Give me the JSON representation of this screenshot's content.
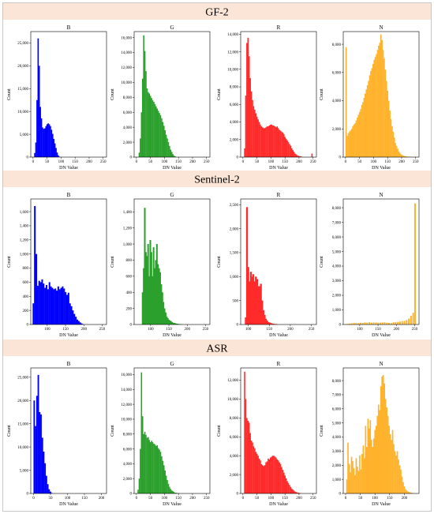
{
  "colors": {
    "B": "#0000ff",
    "G": "#2ca02c",
    "R": "#ff2a2a",
    "N": "#ffb22b",
    "banner": "#fbe5d6"
  },
  "rows": [
    {
      "title": "GF-2"
    },
    {
      "title": "Sentinel-2"
    },
    {
      "title": "ASR"
    }
  ],
  "chart_data": [
    {
      "type": "bar",
      "row": "GF-2",
      "title": "B",
      "xlabel": "DN Value",
      "ylabel": "Count",
      "color": "#0000ff",
      "xlim": [
        -8,
        262
      ],
      "ylim": [
        0,
        27500
      ],
      "xticks": [
        0,
        50,
        100,
        150,
        200,
        250
      ],
      "yticks": [
        0,
        5000,
        10000,
        15000,
        20000,
        25000
      ],
      "x": [
        6,
        10,
        14,
        18,
        22,
        26,
        30,
        34,
        38,
        42,
        46,
        50,
        54,
        58,
        62,
        66,
        70,
        74,
        78,
        82,
        86,
        90,
        94
      ],
      "values": [
        900,
        3200,
        12500,
        26000,
        20000,
        11000,
        8500,
        6500,
        6200,
        6300,
        6800,
        7200,
        7400,
        7200,
        6800,
        6000,
        5100,
        4000,
        3000,
        2000,
        1000,
        400,
        100
      ]
    },
    {
      "type": "bar",
      "row": "GF-2",
      "title": "G",
      "xlabel": "DN Value",
      "ylabel": "Count",
      "color": "#2ca02c",
      "xlim": [
        -8,
        262
      ],
      "ylim": [
        0,
        16800
      ],
      "xticks": [
        0,
        50,
        100,
        150,
        200,
        250
      ],
      "yticks": [
        0,
        2000,
        4000,
        6000,
        8000,
        10000,
        12000,
        14000,
        16000
      ],
      "x": [
        10,
        14,
        18,
        22,
        26,
        30,
        34,
        38,
        42,
        46,
        50,
        54,
        58,
        62,
        66,
        70,
        74,
        78,
        82,
        86,
        90,
        94,
        98,
        102,
        106,
        110,
        114,
        118,
        122,
        126,
        130,
        134,
        138
      ],
      "values": [
        600,
        2500,
        6000,
        10500,
        16300,
        14200,
        11500,
        9200,
        8700,
        8500,
        8200,
        7900,
        7600,
        7400,
        7100,
        6800,
        6500,
        6200,
        5900,
        5600,
        5200,
        4700,
        4200,
        3600,
        3000,
        2500,
        2000,
        1500,
        1000,
        700,
        400,
        200,
        100
      ]
    },
    {
      "type": "bar",
      "row": "GF-2",
      "title": "R",
      "xlabel": "DN Value",
      "ylabel": "Count",
      "color": "#ff2a2a",
      "xlim": [
        -8,
        262
      ],
      "ylim": [
        0,
        14300
      ],
      "xticks": [
        0,
        50,
        100,
        150,
        200,
        250
      ],
      "yticks": [
        0,
        2000,
        4000,
        6000,
        8000,
        10000,
        12000,
        14000
      ],
      "x": [
        6,
        10,
        14,
        18,
        22,
        26,
        30,
        34,
        38,
        42,
        46,
        50,
        54,
        58,
        62,
        66,
        70,
        74,
        78,
        82,
        86,
        90,
        94,
        98,
        102,
        106,
        110,
        114,
        118,
        122,
        126,
        130,
        134,
        138,
        142,
        146,
        150,
        154,
        158,
        162,
        166,
        170,
        174,
        178,
        182,
        186,
        190,
        194,
        198,
        202,
        206,
        210,
        246
      ],
      "values": [
        1000,
        7000,
        13000,
        13600,
        11500,
        9000,
        7500,
        6500,
        5800,
        5400,
        5000,
        4600,
        4300,
        4000,
        3700,
        3500,
        3400,
        3300,
        3300,
        3400,
        3500,
        3500,
        3600,
        3700,
        3700,
        3600,
        3600,
        3500,
        3400,
        3500,
        3300,
        3100,
        3000,
        2900,
        2800,
        2600,
        2300,
        2100,
        1900,
        1700,
        1500,
        1300,
        1000,
        800,
        600,
        400,
        300,
        200,
        150,
        100,
        80,
        50,
        400
      ]
    },
    {
      "type": "bar",
      "row": "GF-2",
      "title": "N",
      "xlabel": "DN Value",
      "ylabel": "Count",
      "color": "#ffb22b",
      "xlim": [
        -8,
        262
      ],
      "ylim": [
        0,
        8900
      ],
      "xticks": [
        0,
        50,
        100,
        150,
        200,
        250
      ],
      "yticks": [
        0,
        2000,
        4000,
        6000,
        8000
      ],
      "x": [
        2,
        6,
        10,
        14,
        18,
        22,
        26,
        30,
        34,
        38,
        42,
        46,
        50,
        54,
        58,
        62,
        66,
        70,
        74,
        78,
        82,
        86,
        90,
        94,
        98,
        102,
        106,
        110,
        114,
        118,
        122,
        126,
        130,
        134,
        138,
        142,
        146,
        150,
        154,
        158,
        162,
        166,
        170,
        174,
        178,
        182,
        186,
        190,
        194,
        198,
        202,
        206,
        210,
        214,
        218,
        222,
        226,
        230,
        234,
        238,
        242,
        246,
        250
      ],
      "values": [
        7800,
        1500,
        1700,
        1800,
        1900,
        2000,
        2200,
        2300,
        2400,
        2600,
        2800,
        3000,
        3200,
        3400,
        3700,
        3900,
        4200,
        4500,
        4800,
        5100,
        5400,
        5800,
        6100,
        6300,
        6600,
        6900,
        7100,
        7300,
        7600,
        7900,
        8100,
        8700,
        8300,
        7600,
        7000,
        6200,
        5400,
        4700,
        4000,
        3300,
        2700,
        2200,
        1800,
        1400,
        1000,
        800,
        600,
        400,
        300,
        200,
        150,
        100,
        80,
        60,
        40,
        30,
        20,
        20,
        10,
        10,
        10,
        10,
        10
      ]
    },
    {
      "type": "bar",
      "row": "Sentinel-2",
      "title": "B",
      "xlabel": "DN Value",
      "ylabel": "Count",
      "color": "#0000ff",
      "xlim": [
        55,
        262
      ],
      "ylim": [
        0,
        1780
      ],
      "xticks": [
        100,
        150,
        200,
        250
      ],
      "yticks": [
        0,
        200,
        400,
        600,
        800,
        1000,
        1200,
        1400,
        1600
      ],
      "x": [
        62,
        66,
        70,
        74,
        78,
        82,
        86,
        90,
        94,
        98,
        102,
        106,
        110,
        114,
        118,
        122,
        126,
        130,
        134,
        138,
        142,
        146,
        150,
        154,
        158,
        162,
        166,
        170,
        174,
        178,
        182,
        186,
        190,
        194,
        198
      ],
      "values": [
        300,
        1680,
        1000,
        550,
        620,
        600,
        640,
        580,
        520,
        560,
        500,
        600,
        540,
        520,
        500,
        510,
        480,
        540,
        500,
        520,
        540,
        510,
        460,
        420,
        450,
        300,
        260,
        200,
        150,
        110,
        70,
        50,
        30,
        15,
        5
      ]
    },
    {
      "type": "bar",
      "row": "Sentinel-2",
      "title": "G",
      "xlabel": "DN Value",
      "ylabel": "Count",
      "color": "#2ca02c",
      "xlim": [
        55,
        262
      ],
      "ylim": [
        0,
        1560
      ],
      "xticks": [
        100,
        150,
        200,
        250
      ],
      "yticks": [
        0,
        200,
        400,
        600,
        800,
        1000,
        1200,
        1400
      ],
      "x": [
        78,
        81,
        84,
        87,
        90,
        93,
        96,
        99,
        102,
        105,
        108,
        111,
        114,
        117,
        120,
        123,
        126,
        129,
        132,
        135,
        138,
        141,
        144,
        147,
        150,
        153,
        156,
        159,
        162,
        165,
        168,
        171,
        174,
        177,
        180,
        183
      ],
      "values": [
        400,
        700,
        1450,
        900,
        850,
        1000,
        600,
        1050,
        900,
        600,
        960,
        700,
        800,
        1000,
        750,
        700,
        650,
        500,
        400,
        280,
        200,
        150,
        100,
        80,
        60,
        50,
        40,
        30,
        20,
        20,
        15,
        10,
        10,
        5,
        5,
        5
      ]
    },
    {
      "type": "bar",
      "row": "Sentinel-2",
      "title": "R",
      "xlabel": "DN Value",
      "ylabel": "Count",
      "color": "#ff2a2a",
      "xlim": [
        82,
        262
      ],
      "ylim": [
        0,
        2620
      ],
      "xticks": [
        100,
        150,
        200,
        250
      ],
      "yticks": [
        0,
        500,
        1000,
        1500,
        2000,
        2500
      ],
      "x": [
        94,
        97,
        100,
        103,
        106,
        109,
        112,
        115,
        118,
        121,
        124,
        127,
        130,
        133,
        136,
        139,
        142,
        145,
        148,
        151,
        154,
        157,
        160,
        163,
        166,
        169
      ],
      "values": [
        150,
        2450,
        1200,
        900,
        1100,
        1000,
        1050,
        900,
        1000,
        950,
        800,
        800,
        850,
        500,
        300,
        200,
        120,
        80,
        50,
        40,
        30,
        20,
        15,
        10,
        10,
        5
      ]
    },
    {
      "type": "bar",
      "row": "Sentinel-2",
      "title": "N",
      "xlabel": "DN Value",
      "ylabel": "Count",
      "color": "#ffb22b",
      "xlim": [
        55,
        262
      ],
      "ylim": [
        0,
        8600
      ],
      "xticks": [
        100,
        150,
        200,
        250
      ],
      "yticks": [
        0,
        1000,
        2000,
        3000,
        4000,
        5000,
        6000,
        7000,
        8000
      ],
      "x": [
        66,
        72,
        78,
        84,
        90,
        96,
        102,
        108,
        114,
        120,
        126,
        132,
        138,
        144,
        150,
        156,
        162,
        168,
        174,
        180,
        186,
        192,
        198,
        204,
        210,
        216,
        222,
        228,
        234,
        240,
        246,
        251
      ],
      "values": [
        40,
        60,
        80,
        100,
        100,
        90,
        120,
        110,
        140,
        130,
        150,
        120,
        140,
        130,
        120,
        130,
        140,
        150,
        120,
        110,
        100,
        150,
        160,
        180,
        200,
        230,
        250,
        300,
        400,
        600,
        800,
        8300
      ]
    },
    {
      "type": "bar",
      "row": "ASR",
      "title": "B",
      "xlabel": "DN Value",
      "ylabel": "Count",
      "color": "#0000ff",
      "xlim": [
        -8,
        215
      ],
      "ylim": [
        0,
        27000
      ],
      "xticks": [
        0,
        50,
        100,
        150,
        200
      ],
      "yticks": [
        0,
        5000,
        10000,
        15000,
        20000,
        25000
      ],
      "x": [
        2,
        6,
        10,
        14,
        18,
        22,
        26,
        30,
        34,
        38,
        42,
        46,
        50,
        54
      ],
      "values": [
        20000,
        14500,
        21000,
        25500,
        17500,
        17000,
        12000,
        9000,
        6500,
        3800,
        2000,
        900,
        400,
        100
      ]
    },
    {
      "type": "bar",
      "row": "ASR",
      "title": "G",
      "xlabel": "DN Value",
      "ylabel": "Count",
      "color": "#2ca02c",
      "xlim": [
        -8,
        262
      ],
      "ylim": [
        0,
        16900
      ],
      "xticks": [
        0,
        50,
        100,
        150,
        200,
        250
      ],
      "yticks": [
        0,
        2000,
        4000,
        6000,
        8000,
        10000,
        12000,
        14000,
        16000
      ],
      "x": [
        6,
        10,
        14,
        18,
        22,
        26,
        30,
        34,
        38,
        42,
        46,
        50,
        54,
        58,
        62,
        66,
        70,
        74,
        78,
        82,
        86,
        90,
        94,
        98,
        102,
        106,
        110,
        114,
        118,
        122,
        126,
        130,
        134,
        138,
        142,
        146,
        150
      ],
      "values": [
        500,
        2000,
        6000,
        16300,
        10400,
        8000,
        8300,
        7900,
        7500,
        7600,
        7200,
        6900,
        7100,
        6900,
        6700,
        6600,
        6400,
        6500,
        6100,
        5900,
        5600,
        5000,
        4400,
        3800,
        3100,
        2400,
        1800,
        1300,
        900,
        600,
        400,
        300,
        200,
        100,
        80,
        50,
        30
      ]
    },
    {
      "type": "bar",
      "row": "ASR",
      "title": "R",
      "xlabel": "DN Value",
      "ylabel": "Count",
      "color": "#ff2a2a",
      "xlim": [
        -8,
        262
      ],
      "ylim": [
        0,
        13300
      ],
      "xticks": [
        0,
        50,
        100,
        150,
        200,
        250
      ],
      "yticks": [
        0,
        2000,
        4000,
        6000,
        8000,
        10000,
        12000
      ],
      "x": [
        6,
        10,
        14,
        18,
        22,
        26,
        30,
        34,
        38,
        42,
        46,
        50,
        54,
        58,
        62,
        66,
        70,
        74,
        78,
        82,
        86,
        90,
        94,
        98,
        102,
        106,
        110,
        114,
        118,
        122,
        126,
        130,
        134,
        138,
        142,
        146,
        150,
        154,
        158,
        162,
        166,
        170,
        174,
        178,
        182,
        186,
        190,
        194,
        198,
        202,
        206
      ],
      "values": [
        12900,
        10000,
        8000,
        7700,
        7500,
        6400,
        5600,
        5400,
        5000,
        4800,
        4400,
        4200,
        4000,
        3700,
        3500,
        3100,
        3000,
        2900,
        3000,
        3300,
        3400,
        3700,
        3600,
        3800,
        3900,
        4000,
        4000,
        3900,
        3800,
        3600,
        3500,
        3300,
        3100,
        2800,
        2500,
        2200,
        1900,
        1600,
        1300,
        1100,
        900,
        700,
        500,
        400,
        300,
        200,
        150,
        100,
        80,
        50,
        30
      ]
    },
    {
      "type": "bar",
      "row": "ASR",
      "title": "N",
      "xlabel": "DN Value",
      "ylabel": "Count",
      "color": "#ffb22b",
      "xlim": [
        -8,
        250
      ],
      "ylim": [
        0,
        8900
      ],
      "xticks": [
        0,
        50,
        100,
        150,
        200
      ],
      "yticks": [
        0,
        1000,
        2000,
        3000,
        4000,
        5000,
        6000,
        7000,
        8000
      ],
      "x": [
        4,
        8,
        12,
        16,
        20,
        24,
        28,
        32,
        36,
        40,
        44,
        48,
        52,
        56,
        60,
        64,
        68,
        72,
        76,
        80,
        84,
        88,
        92,
        96,
        100,
        104,
        108,
        112,
        116,
        120,
        124,
        128,
        132,
        136,
        140,
        144,
        148,
        152,
        156,
        160,
        164,
        168,
        172,
        176,
        180,
        184,
        188,
        192,
        196,
        200,
        204,
        208,
        212,
        216,
        220,
        224,
        228
      ],
      "values": [
        1000,
        3600,
        2100,
        1500,
        2600,
        2300,
        1800,
        1300,
        2500,
        1900,
        1600,
        2700,
        1700,
        2800,
        3400,
        2500,
        4800,
        3300,
        5300,
        4600,
        5200,
        3800,
        3300,
        3900,
        4500,
        4800,
        5500,
        6300,
        5900,
        7600,
        8300,
        8400,
        7800,
        6700,
        6100,
        5500,
        4800,
        4200,
        3800,
        4500,
        3500,
        3000,
        2700,
        3000,
        2400,
        2000,
        1700,
        1200,
        800,
        500,
        300,
        200,
        150,
        100,
        80,
        50,
        30
      ]
    }
  ]
}
